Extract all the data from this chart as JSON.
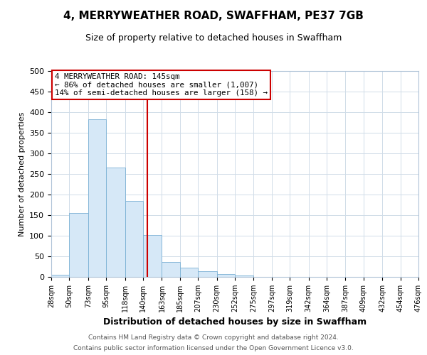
{
  "title": "4, MERRYWEATHER ROAD, SWAFFHAM, PE37 7GB",
  "subtitle": "Size of property relative to detached houses in Swaffham",
  "xlabel": "Distribution of detached houses by size in Swaffham",
  "ylabel": "Number of detached properties",
  "bin_labels": [
    "28sqm",
    "50sqm",
    "73sqm",
    "95sqm",
    "118sqm",
    "140sqm",
    "163sqm",
    "185sqm",
    "207sqm",
    "230sqm",
    "252sqm",
    "275sqm",
    "297sqm",
    "319sqm",
    "342sqm",
    "364sqm",
    "387sqm",
    "409sqm",
    "432sqm",
    "454sqm",
    "476sqm"
  ],
  "bin_edges": [
    28,
    50,
    73,
    95,
    118,
    140,
    163,
    185,
    207,
    230,
    252,
    275,
    297,
    319,
    342,
    364,
    387,
    409,
    432,
    454,
    476
  ],
  "bar_heights": [
    6,
    155,
    383,
    265,
    184,
    101,
    37,
    22,
    13,
    7,
    3,
    0,
    0,
    0,
    0,
    0,
    0,
    0,
    0,
    0
  ],
  "bar_color": "#d6e8f7",
  "bar_edgecolor": "#7ab0d4",
  "property_value": 145,
  "vline_color": "#cc0000",
  "annotation_line1": "4 MERRYWEATHER ROAD: 145sqm",
  "annotation_line2": "← 86% of detached houses are smaller (1,007)",
  "annotation_line3": "14% of semi-detached houses are larger (158) →",
  "annotation_box_edgecolor": "#cc0000",
  "ylim": [
    0,
    500
  ],
  "yticks": [
    0,
    50,
    100,
    150,
    200,
    250,
    300,
    350,
    400,
    450,
    500
  ],
  "footer_line1": "Contains HM Land Registry data © Crown copyright and database right 2024.",
  "footer_line2": "Contains public sector information licensed under the Open Government Licence v3.0.",
  "background_color": "#ffffff",
  "plot_background_color": "#ffffff",
  "grid_color": "#d0dce8",
  "title_fontsize": 11,
  "subtitle_fontsize": 9
}
